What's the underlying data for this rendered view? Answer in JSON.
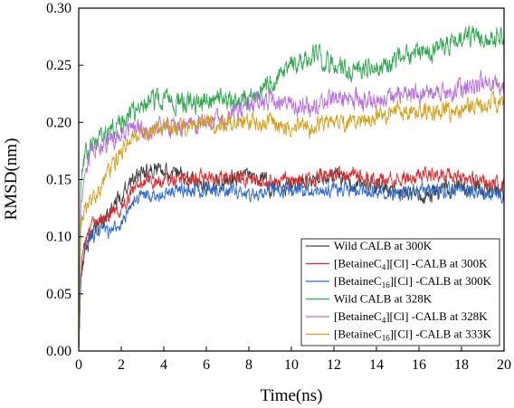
{
  "chart_data": {
    "type": "line",
    "title": "",
    "xlabel": "Time(ns)",
    "ylabel": "RMSD(nm)",
    "xlim": [
      0,
      20
    ],
    "ylim": [
      0.0,
      0.3
    ],
    "x_ticks": [
      "0",
      "2",
      "4",
      "6",
      "8",
      "10",
      "12",
      "14",
      "16",
      "18",
      "20"
    ],
    "y_ticks": [
      "0.00",
      "0.05",
      "0.10",
      "0.15",
      "0.20",
      "0.25",
      "0.30"
    ],
    "grid": false,
    "legend_position": "bottom-right",
    "series": [
      {
        "name": "Wild CALB at 300K",
        "name_parts": [
          {
            "t": "Wild CALB at 300K"
          }
        ],
        "color": "#404040",
        "noise": 0.006,
        "x": [
          0,
          0.1,
          0.3,
          0.6,
          1.0,
          1.5,
          2.0,
          2.5,
          3.0,
          3.5,
          4.0,
          5.0,
          6.0,
          7.0,
          8.0,
          9.0,
          10.0,
          11.0,
          12.0,
          13.0,
          14.0,
          15.0,
          16.0,
          17.0,
          18.0,
          19.0,
          20.0
        ],
        "y": [
          0.0,
          0.07,
          0.09,
          0.1,
          0.11,
          0.125,
          0.135,
          0.15,
          0.155,
          0.16,
          0.16,
          0.15,
          0.145,
          0.15,
          0.155,
          0.145,
          0.145,
          0.15,
          0.155,
          0.145,
          0.145,
          0.14,
          0.135,
          0.14,
          0.145,
          0.14,
          0.14
        ]
      },
      {
        "name": "[BetaineC4][Cl] -CALB at 300K",
        "name_parts": [
          {
            "t": "[BetaineC"
          },
          {
            "t": "4",
            "sub": true
          },
          {
            "t": "][Cl] -CALB at 300K"
          }
        ],
        "color": "#e8262a",
        "noise": 0.005,
        "x": [
          0,
          0.1,
          0.3,
          0.6,
          1.0,
          1.5,
          2.0,
          2.5,
          3.0,
          3.5,
          4.0,
          5.0,
          6.0,
          7.0,
          8.0,
          9.0,
          10.0,
          11.0,
          12.0,
          13.0,
          14.0,
          15.0,
          16.0,
          17.0,
          18.0,
          19.0,
          20.0
        ],
        "y": [
          0.0,
          0.07,
          0.1,
          0.11,
          0.115,
          0.12,
          0.125,
          0.14,
          0.15,
          0.148,
          0.15,
          0.15,
          0.152,
          0.152,
          0.15,
          0.148,
          0.15,
          0.152,
          0.155,
          0.155,
          0.15,
          0.15,
          0.155,
          0.155,
          0.152,
          0.148,
          0.148
        ]
      },
      {
        "name": "[BetaineC16][Cl] -CALB at 300K",
        "name_parts": [
          {
            "t": "[BetaineC"
          },
          {
            "t": "16",
            "sub": true
          },
          {
            "t": "][Cl] -CALB at 300K"
          }
        ],
        "color": "#2a6bd4",
        "noise": 0.005,
        "x": [
          0,
          0.1,
          0.3,
          0.6,
          1.0,
          1.5,
          2.0,
          2.5,
          3.0,
          3.5,
          4.0,
          5.0,
          6.0,
          7.0,
          8.0,
          9.0,
          10.0,
          11.0,
          12.0,
          13.0,
          14.0,
          15.0,
          16.0,
          17.0,
          18.0,
          19.0,
          20.0
        ],
        "y": [
          0.0,
          0.06,
          0.09,
          0.1,
          0.105,
          0.105,
          0.11,
          0.13,
          0.135,
          0.135,
          0.138,
          0.14,
          0.14,
          0.14,
          0.138,
          0.14,
          0.14,
          0.14,
          0.142,
          0.14,
          0.14,
          0.138,
          0.14,
          0.14,
          0.14,
          0.138,
          0.135
        ]
      },
      {
        "name": "Wild CALB at 328K",
        "name_parts": [
          {
            "t": "Wild CALB at 328K"
          }
        ],
        "color": "#2fa84f",
        "noise": 0.007,
        "x": [
          0,
          0.1,
          0.3,
          0.6,
          1.0,
          1.5,
          2.0,
          2.5,
          3.0,
          3.5,
          4.0,
          5.0,
          6.0,
          7.0,
          8.0,
          9.0,
          10.0,
          11.0,
          12.0,
          13.0,
          14.0,
          15.0,
          16.0,
          17.0,
          18.0,
          19.0,
          20.0
        ],
        "y": [
          0.0,
          0.15,
          0.17,
          0.18,
          0.185,
          0.19,
          0.2,
          0.21,
          0.215,
          0.22,
          0.22,
          0.215,
          0.22,
          0.22,
          0.22,
          0.235,
          0.25,
          0.26,
          0.25,
          0.245,
          0.25,
          0.255,
          0.26,
          0.265,
          0.275,
          0.275,
          0.275
        ]
      },
      {
        "name": "[BetaineC4][Cl] -CALB at 328K",
        "name_parts": [
          {
            "t": "[BetaineC"
          },
          {
            "t": "4",
            "sub": true
          },
          {
            "t": "][Cl] -CALB at 328K"
          }
        ],
        "color": "#b76ee0",
        "noise": 0.007,
        "x": [
          0,
          0.1,
          0.3,
          0.6,
          1.0,
          1.5,
          2.0,
          2.5,
          3.0,
          3.5,
          4.0,
          5.0,
          6.0,
          7.0,
          8.0,
          9.0,
          10.0,
          11.0,
          12.0,
          13.0,
          14.0,
          15.0,
          16.0,
          17.0,
          18.0,
          19.0,
          20.0
        ],
        "y": [
          0.0,
          0.13,
          0.16,
          0.175,
          0.18,
          0.185,
          0.19,
          0.195,
          0.195,
          0.195,
          0.195,
          0.195,
          0.2,
          0.205,
          0.215,
          0.22,
          0.215,
          0.215,
          0.22,
          0.22,
          0.22,
          0.225,
          0.225,
          0.225,
          0.23,
          0.235,
          0.23
        ]
      },
      {
        "name": "[BetaineC16][Cl] -CALB at 333K",
        "name_parts": [
          {
            "t": "[BetaineC"
          },
          {
            "t": "16",
            "sub": true
          },
          {
            "t": "][Cl] -CALB at 333K"
          }
        ],
        "color": "#d4a017",
        "noise": 0.006,
        "x": [
          0,
          0.1,
          0.3,
          0.6,
          1.0,
          1.5,
          2.0,
          2.5,
          3.0,
          3.5,
          4.0,
          5.0,
          6.0,
          7.0,
          8.0,
          9.0,
          10.0,
          11.0,
          12.0,
          13.0,
          14.0,
          15.0,
          16.0,
          17.0,
          18.0,
          19.0,
          20.0
        ],
        "y": [
          0.0,
          0.11,
          0.125,
          0.13,
          0.14,
          0.16,
          0.175,
          0.185,
          0.19,
          0.19,
          0.195,
          0.195,
          0.2,
          0.2,
          0.2,
          0.2,
          0.195,
          0.195,
          0.2,
          0.2,
          0.205,
          0.21,
          0.21,
          0.21,
          0.21,
          0.215,
          0.22
        ]
      }
    ]
  }
}
